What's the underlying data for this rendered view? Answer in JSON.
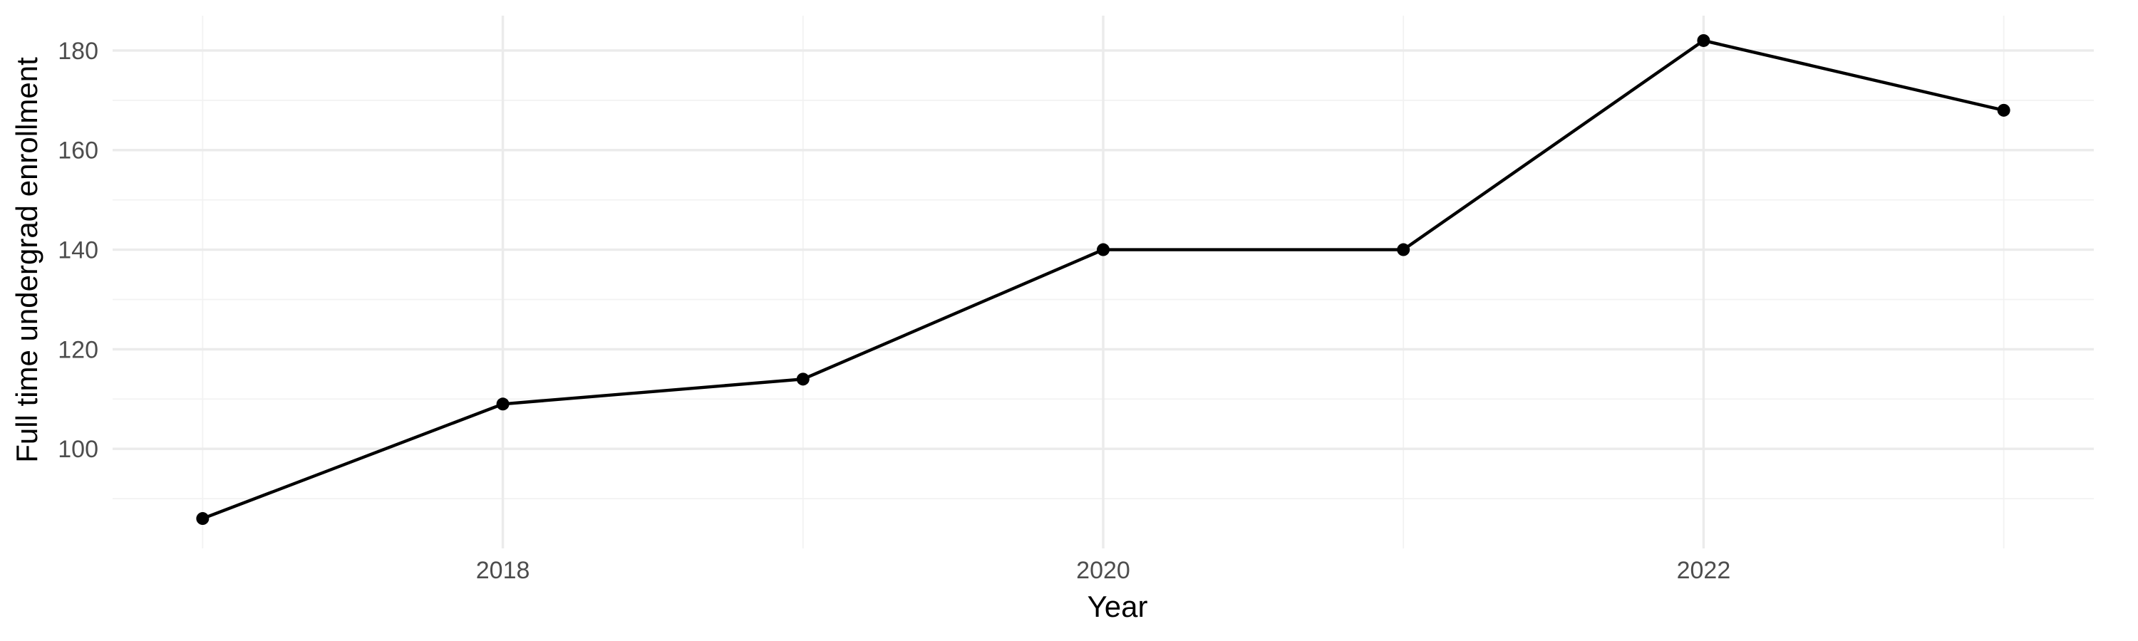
{
  "chart_data": {
    "type": "line",
    "title": "",
    "xlabel": "Year",
    "ylabel": "Full time undergrad enrollment",
    "x": [
      2017,
      2018,
      2019,
      2020,
      2021,
      2022,
      2023
    ],
    "series": [
      {
        "values": [
          86,
          109,
          114,
          140,
          140,
          182,
          168
        ]
      }
    ],
    "xlim": [
      2016.7,
      2023.3
    ],
    "ylim": [
      80,
      187
    ],
    "x_ticks": [
      2018,
      2020,
      2022
    ],
    "x_tick_labels": [
      "2018",
      "2020",
      "2022"
    ],
    "y_ticks": [
      100,
      120,
      140,
      160,
      180
    ],
    "y_tick_labels": [
      "100",
      "120",
      "140",
      "160",
      "180"
    ],
    "x_minor_ticks": [
      2017,
      2019,
      2021,
      2023
    ],
    "y_minor_ticks": [
      90,
      110,
      130,
      150,
      170
    ],
    "grid": true,
    "legend": "none",
    "colors": {
      "line": "#000000",
      "grid": "#ebebeb",
      "background": "#ffffff"
    }
  }
}
